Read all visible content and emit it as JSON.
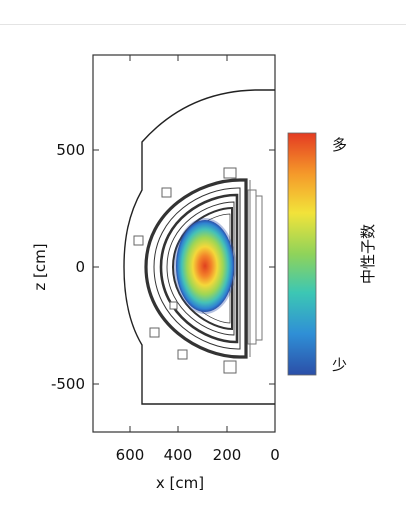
{
  "x_axis": {
    "label": "x [cm]",
    "ticks": [
      "600",
      "400",
      "200",
      "0"
    ]
  },
  "z_axis": {
    "label": "z [cm]",
    "ticks": [
      "500",
      "0",
      "-500"
    ]
  },
  "colorbar": {
    "label": "中性子数",
    "high_label": "多",
    "low_label": "少",
    "colors": [
      "#2b4fa8",
      "#2f8fd6",
      "#3cc7b4",
      "#8fd35a",
      "#f2e33a",
      "#f59a2a",
      "#e43b22"
    ]
  }
}
